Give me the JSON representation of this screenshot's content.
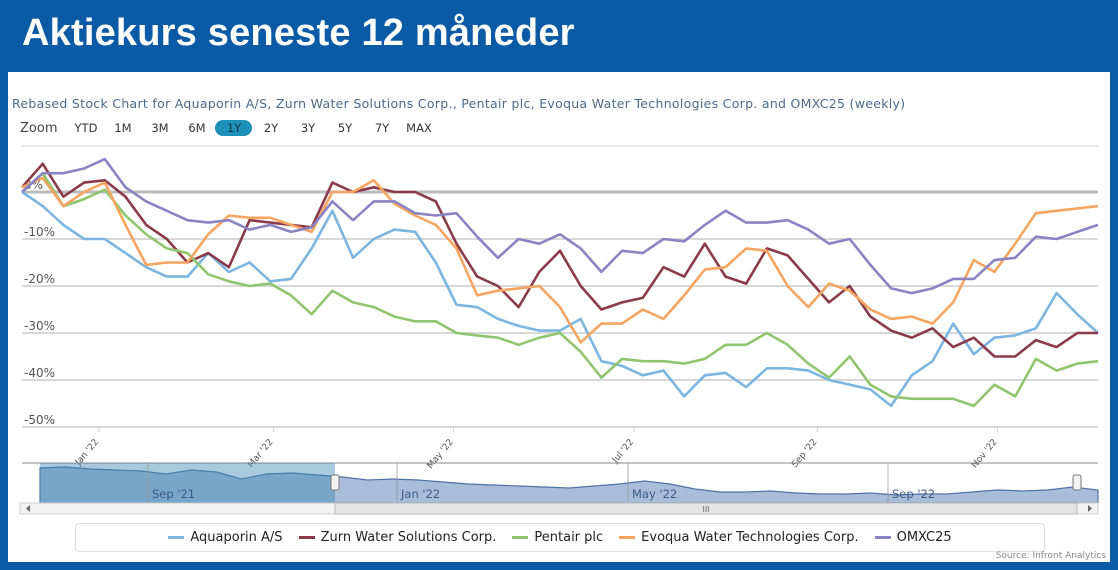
{
  "header": {
    "title": "Aktiekurs seneste 12 måneder"
  },
  "zoom": {
    "label": "Zoom",
    "buttons": [
      "YTD",
      "1M",
      "3M",
      "6M",
      "1Y",
      "2Y",
      "3Y",
      "5Y",
      "7Y",
      "MAX"
    ],
    "selected": "1Y"
  },
  "navigator": {
    "labels": [
      "Sep '21",
      "Jan '22",
      "May '22",
      "Sep '22"
    ],
    "scrollbar_grip": "III"
  },
  "source": "Source: Infront Analytics",
  "chart_data": {
    "type": "line",
    "title": "Rebased Stock Chart for Aquaporin A/S, Zurn Water Solutions Corp., Pentair plc, Evoqua Water Technologies Corp. and OMXC25 (weekly)",
    "y_ticks": [
      "0%",
      "-10%",
      "-20%",
      "-30%",
      "-40%",
      "-50%"
    ],
    "y_tick_values": [
      0,
      -10,
      -20,
      -30,
      -40,
      -50
    ],
    "ylim": [
      -50,
      8
    ],
    "x_ticks": [
      "Jan '22",
      "Mar '22",
      "May '22",
      "Jul '22",
      "Sep '22",
      "Nov '22"
    ],
    "x_tick_dates": [
      "2022-01-01",
      "2022-03-01",
      "2022-05-01",
      "2022-07-01",
      "2022-09-01",
      "2022-11-01"
    ],
    "grid": true,
    "legend_position": "bottom",
    "x": [
      "2021-12-06",
      "2021-12-13",
      "2021-12-20",
      "2021-12-27",
      "2022-01-03",
      "2022-01-10",
      "2022-01-17",
      "2022-01-24",
      "2022-01-31",
      "2022-02-07",
      "2022-02-14",
      "2022-02-21",
      "2022-02-28",
      "2022-03-07",
      "2022-03-14",
      "2022-03-21",
      "2022-03-28",
      "2022-04-04",
      "2022-04-11",
      "2022-04-18",
      "2022-04-25",
      "2022-05-02",
      "2022-05-09",
      "2022-05-16",
      "2022-05-23",
      "2022-05-30",
      "2022-06-06",
      "2022-06-13",
      "2022-06-20",
      "2022-06-27",
      "2022-07-04",
      "2022-07-11",
      "2022-07-18",
      "2022-07-25",
      "2022-08-01",
      "2022-08-08",
      "2022-08-15",
      "2022-08-22",
      "2022-08-29",
      "2022-09-05",
      "2022-09-12",
      "2022-09-19",
      "2022-09-26",
      "2022-10-03",
      "2022-10-10",
      "2022-10-17",
      "2022-10-24",
      "2022-10-31",
      "2022-11-07",
      "2022-11-14",
      "2022-11-21",
      "2022-11-28",
      "2022-12-05"
    ],
    "series": [
      {
        "name": "Aquaporin A/S",
        "color": "#7cb5e0",
        "values": [
          0,
          -3,
          -7,
          -10,
          -10,
          -13,
          -16,
          -18,
          -18,
          -13,
          -17,
          -15,
          -19,
          -18.5,
          -12,
          -4,
          -14,
          -10,
          -8,
          -8.5,
          -15,
          -24,
          -24.5,
          -27,
          -28.5,
          -29.5,
          -29.5,
          -27,
          -36,
          -37,
          -39,
          -38,
          -43.5,
          -39,
          -38.5,
          -41.5,
          -37.5,
          -37.5,
          -38,
          -40,
          -41,
          -42,
          -45.5,
          -39,
          -36,
          -28,
          -34.5,
          -31,
          -30.5,
          -29,
          -21.5,
          -26,
          -30
        ]
      },
      {
        "name": "Zurn Water Solutions Corp.",
        "color": "#8b3a4a",
        "values": [
          1,
          6,
          -1,
          2,
          2.5,
          -1,
          -7,
          -10,
          -15,
          -13,
          -16,
          -6,
          -6.5,
          -7,
          -7.5,
          2,
          0,
          1,
          0,
          0,
          -2,
          -11,
          -18,
          -20,
          -24.5,
          -17,
          -12.5,
          -20,
          -25,
          -23.5,
          -22.5,
          -16,
          -18,
          -11,
          -18,
          -19.5,
          -12,
          -13.5,
          -18.5,
          -23.5,
          -20,
          -26.5,
          -29.5,
          -31,
          -29,
          -33,
          -31,
          -35,
          -35,
          -31.5,
          -33,
          -30,
          -30
        ]
      },
      {
        "name": "Pentair plc",
        "color": "#8fc56e",
        "values": [
          0,
          4,
          -3,
          -1.5,
          0.5,
          -5,
          -9,
          -12,
          -13,
          -17.5,
          -19,
          -20,
          -19.5,
          -22,
          -26,
          -21,
          -23.5,
          -24.5,
          -26.5,
          -27.5,
          -27.5,
          -30,
          -30.5,
          -31,
          -32.5,
          -31,
          -30,
          -34,
          -39.5,
          -35.5,
          -36,
          -36,
          -36.5,
          -35.5,
          -32.5,
          -32.5,
          -30,
          -32.5,
          -36.5,
          -39.5,
          -35,
          -41,
          -43.5,
          -44,
          -44,
          -44,
          -45.5,
          -41,
          -43.5,
          -35.5,
          -38,
          -36.5,
          -36
        ]
      },
      {
        "name": "Evoqua Water Technologies Corp.",
        "color": "#f5a55f",
        "values": [
          1,
          3,
          -3,
          0,
          2,
          -7,
          -15.5,
          -15,
          -15,
          -9,
          -5,
          -5.5,
          -5.5,
          -7,
          -8.5,
          0,
          0,
          2.5,
          -2.5,
          -5,
          -7,
          -12,
          -22,
          -21,
          -20.5,
          -20,
          -24.5,
          -32,
          -28,
          -28,
          -25,
          -27,
          -22,
          -16.5,
          -16,
          -12,
          -12.5,
          -20,
          -24.5,
          -19.5,
          -21,
          -25,
          -27,
          -26.5,
          -28,
          -23.5,
          -14.5,
          -17,
          -11,
          -4.5,
          -4,
          -3.5,
          -3
        ]
      },
      {
        "name": "OMXC25",
        "color": "#8a83c4",
        "values": [
          0,
          4,
          4,
          5,
          7,
          1,
          -2,
          -4,
          -6,
          -6.5,
          -6,
          -8,
          -7,
          -8.5,
          -7.5,
          -2,
          -6,
          -2,
          -2,
          -4.5,
          -5,
          -4.5,
          -9.5,
          -14,
          -10,
          -11,
          -9,
          -12,
          -17,
          -12.5,
          -13,
          -10,
          -10.5,
          -7,
          -4,
          -6.5,
          -6.5,
          -6,
          -8,
          -11,
          -10,
          -15.5,
          -20.5,
          -21.5,
          -20.5,
          -18.5,
          -18.5,
          -14.5,
          -14,
          -9.5,
          -10,
          -8.5,
          -7
        ]
      }
    ]
  }
}
